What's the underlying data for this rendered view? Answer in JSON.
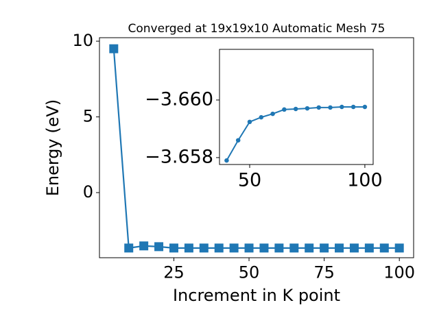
{
  "chart_data": [
    {
      "type": "line",
      "title": "Converged at 19x19x10 Automatic Mesh 75",
      "x_label": "Increment in K point",
      "y_label": "Energy (eV)",
      "x": [
        5,
        10,
        15,
        20,
        25,
        30,
        35,
        40,
        45,
        50,
        55,
        60,
        65,
        70,
        75,
        80,
        85,
        90,
        95,
        100
      ],
      "series": [
        {
          "name": "Energy",
          "color": "#1f77b4",
          "marker": "square",
          "values": [
            9.5,
            -3.66,
            -3.52,
            -3.57,
            -3.66,
            -3.66,
            -3.66,
            -3.66,
            -3.66,
            -3.66,
            -3.66,
            -3.66,
            -3.66,
            -3.66,
            -3.66,
            -3.66,
            -3.66,
            -3.66,
            -3.66,
            -3.66
          ]
        }
      ],
      "xlim": [
        0.25,
        104.75
      ],
      "ylim": [
        -4.3,
        10.23
      ],
      "xticks": [
        25,
        50,
        75,
        100
      ],
      "yticks": [
        0,
        5,
        10
      ]
    },
    {
      "type": "line",
      "x": [
        40,
        45,
        50,
        55,
        60,
        65,
        70,
        75,
        80,
        85,
        90,
        95,
        100
      ],
      "series": [
        {
          "name": "Energy",
          "color": "#1f77b4",
          "marker": "circle",
          "values": [
            -3.6579,
            -3.6586,
            -3.65924,
            -3.6594,
            -3.65952,
            -3.65967,
            -3.65969,
            -3.65971,
            -3.65974,
            -3.65974,
            -3.65976,
            -3.65976,
            -3.65976
          ]
        }
      ],
      "xlim": [
        36.9,
        103.6
      ],
      "ylim": [
        -3.65776,
        -3.66176
      ],
      "xticks": [
        50,
        100
      ],
      "yticks": [
        {
          "value": -3.66,
          "label": "−3.660"
        },
        {
          "value": -3.658,
          "label": "−3.658"
        }
      ]
    }
  ]
}
